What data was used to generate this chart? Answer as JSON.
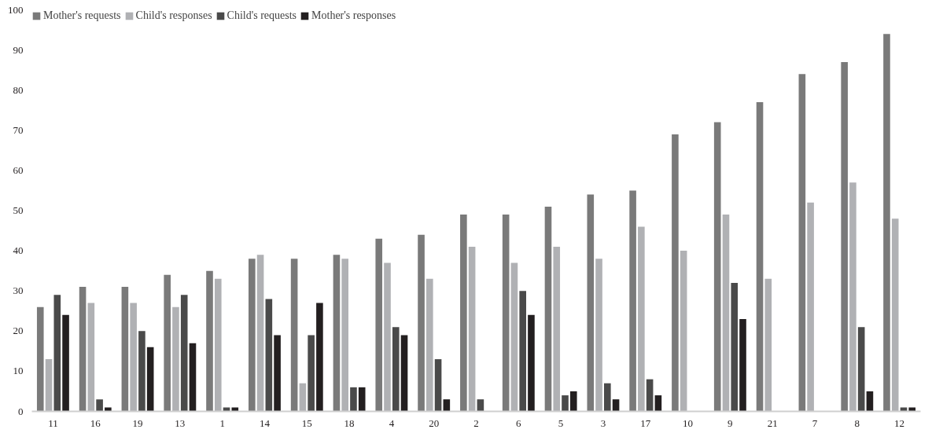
{
  "chart_data": {
    "type": "bar",
    "categories": [
      "11",
      "16",
      "19",
      "13",
      "1",
      "14",
      "15",
      "18",
      "4",
      "20",
      "2",
      "6",
      "5",
      "3",
      "17",
      "10",
      "9",
      "21",
      "7",
      "8",
      "12"
    ],
    "series": [
      {
        "name": "Mother's requests",
        "color": "#7a7a7a",
        "values": [
          26,
          31,
          31,
          34,
          35,
          38,
          38,
          39,
          43,
          44,
          49,
          49,
          51,
          54,
          55,
          69,
          72,
          77,
          84,
          87,
          94
        ]
      },
      {
        "name": "Child's responses",
        "color": "#b0b1b4",
        "values": [
          13,
          27,
          27,
          26,
          33,
          39,
          7,
          38,
          37,
          33,
          41,
          37,
          41,
          38,
          46,
          40,
          49,
          33,
          52,
          57,
          48
        ]
      },
      {
        "name": "Child's requests",
        "color": "#4a4a4a",
        "values": [
          29,
          3,
          20,
          29,
          1,
          28,
          19,
          6,
          21,
          13,
          3,
          30,
          4,
          7,
          8,
          0,
          32,
          0,
          0,
          21,
          1
        ]
      },
      {
        "name": "Mother's responses",
        "color": "#231f20",
        "values": [
          24,
          1,
          16,
          17,
          1,
          19,
          27,
          6,
          19,
          3,
          0,
          24,
          5,
          3,
          4,
          0,
          23,
          0,
          0,
          5,
          1
        ]
      }
    ],
    "ylim": [
      0,
      100
    ],
    "yticks": [
      0,
      10,
      20,
      30,
      40,
      50,
      60,
      70,
      80,
      90,
      100
    ],
    "grid": false,
    "legend": "top left"
  }
}
